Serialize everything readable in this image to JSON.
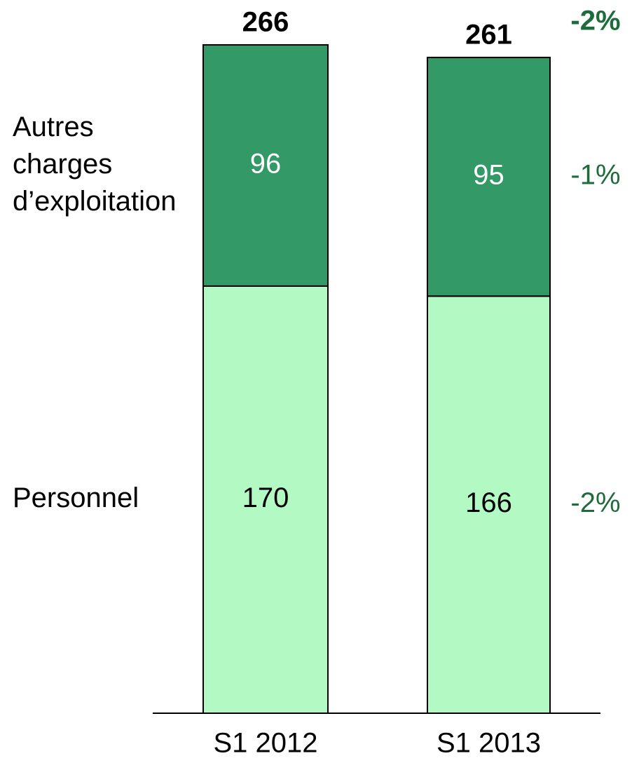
{
  "chart_data": {
    "type": "stacked_bar",
    "categories": [
      "S1 2012",
      "S1 2013"
    ],
    "series": [
      {
        "name": "Personnel",
        "color": "#b3f9c3",
        "values": [
          170,
          166
        ],
        "change_label": "-2%"
      },
      {
        "name": "Autres charges d’exploitation",
        "color": "#339966",
        "values": [
          96,
          95
        ],
        "change_label": "-1%"
      }
    ],
    "totals": [
      266,
      261
    ],
    "total_change_label": "-2%"
  }
}
